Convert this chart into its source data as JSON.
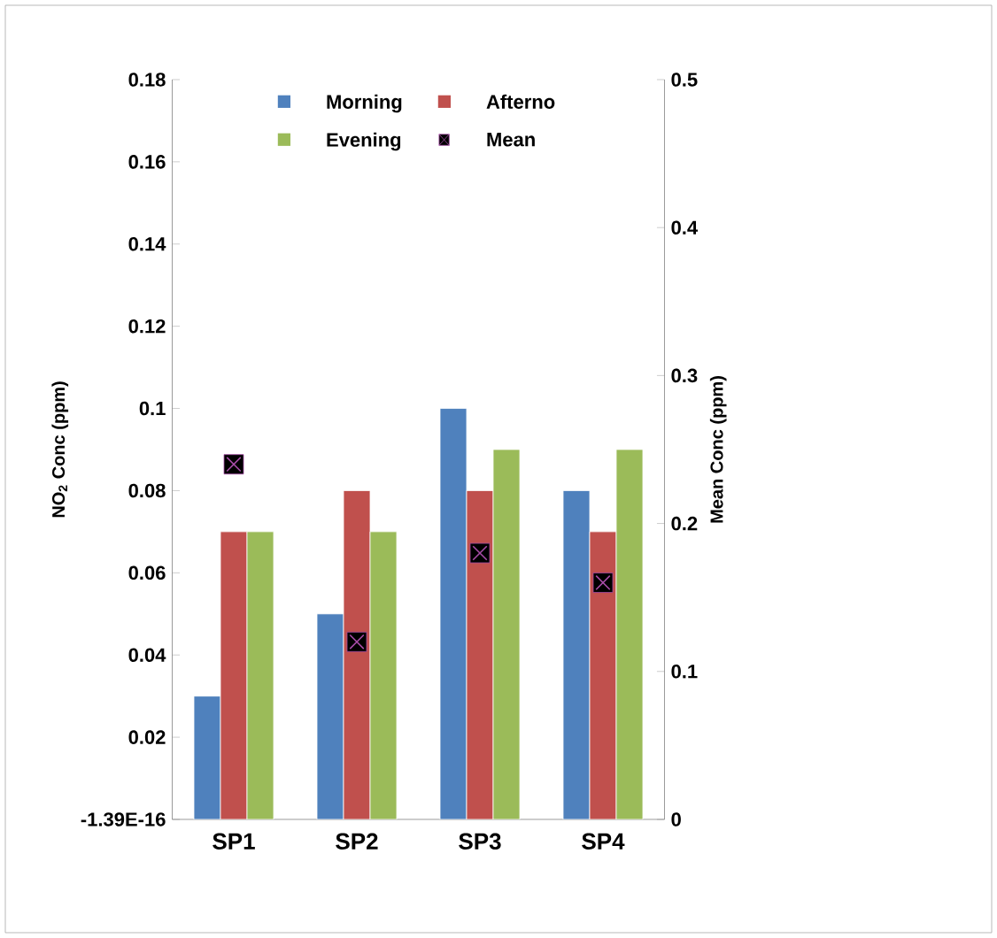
{
  "chart_data": {
    "type": "bar",
    "categories": [
      "SP1",
      "SP2",
      "SP3",
      "SP4"
    ],
    "series": [
      {
        "name": "Morning",
        "color": "#4f81bd",
        "values": [
          0.03,
          0.05,
          0.1,
          0.08
        ]
      },
      {
        "name": "Afterno",
        "color": "#c0504d",
        "values": [
          0.07,
          0.08,
          0.08,
          0.07
        ]
      },
      {
        "name": "Evening",
        "color": "#9bbb59",
        "values": [
          0.07,
          0.07,
          0.09,
          0.09
        ]
      },
      {
        "name": "Mean",
        "type": "scatter",
        "axis": "y2",
        "color": "#000000",
        "marker": "square",
        "values": [
          0.24,
          0.12,
          0.18,
          0.16
        ]
      }
    ],
    "ylabel": "NO$_{2}$ Conc (ppm)",
    "y2label": "Mean Conc (ppm)",
    "ylim": [
      0,
      0.18
    ],
    "yticks": [
      {
        "value": 0,
        "label": "-1.39E-16"
      },
      0.02,
      0.04,
      0.06,
      0.08,
      0.1,
      0.12,
      0.14,
      0.16,
      0.18
    ],
    "y2lim": [
      0,
      0.5
    ],
    "y2ticks": [
      0,
      0.1,
      0.2,
      0.3,
      0.4,
      0.5
    ],
    "legend": "top",
    "grid": false
  }
}
